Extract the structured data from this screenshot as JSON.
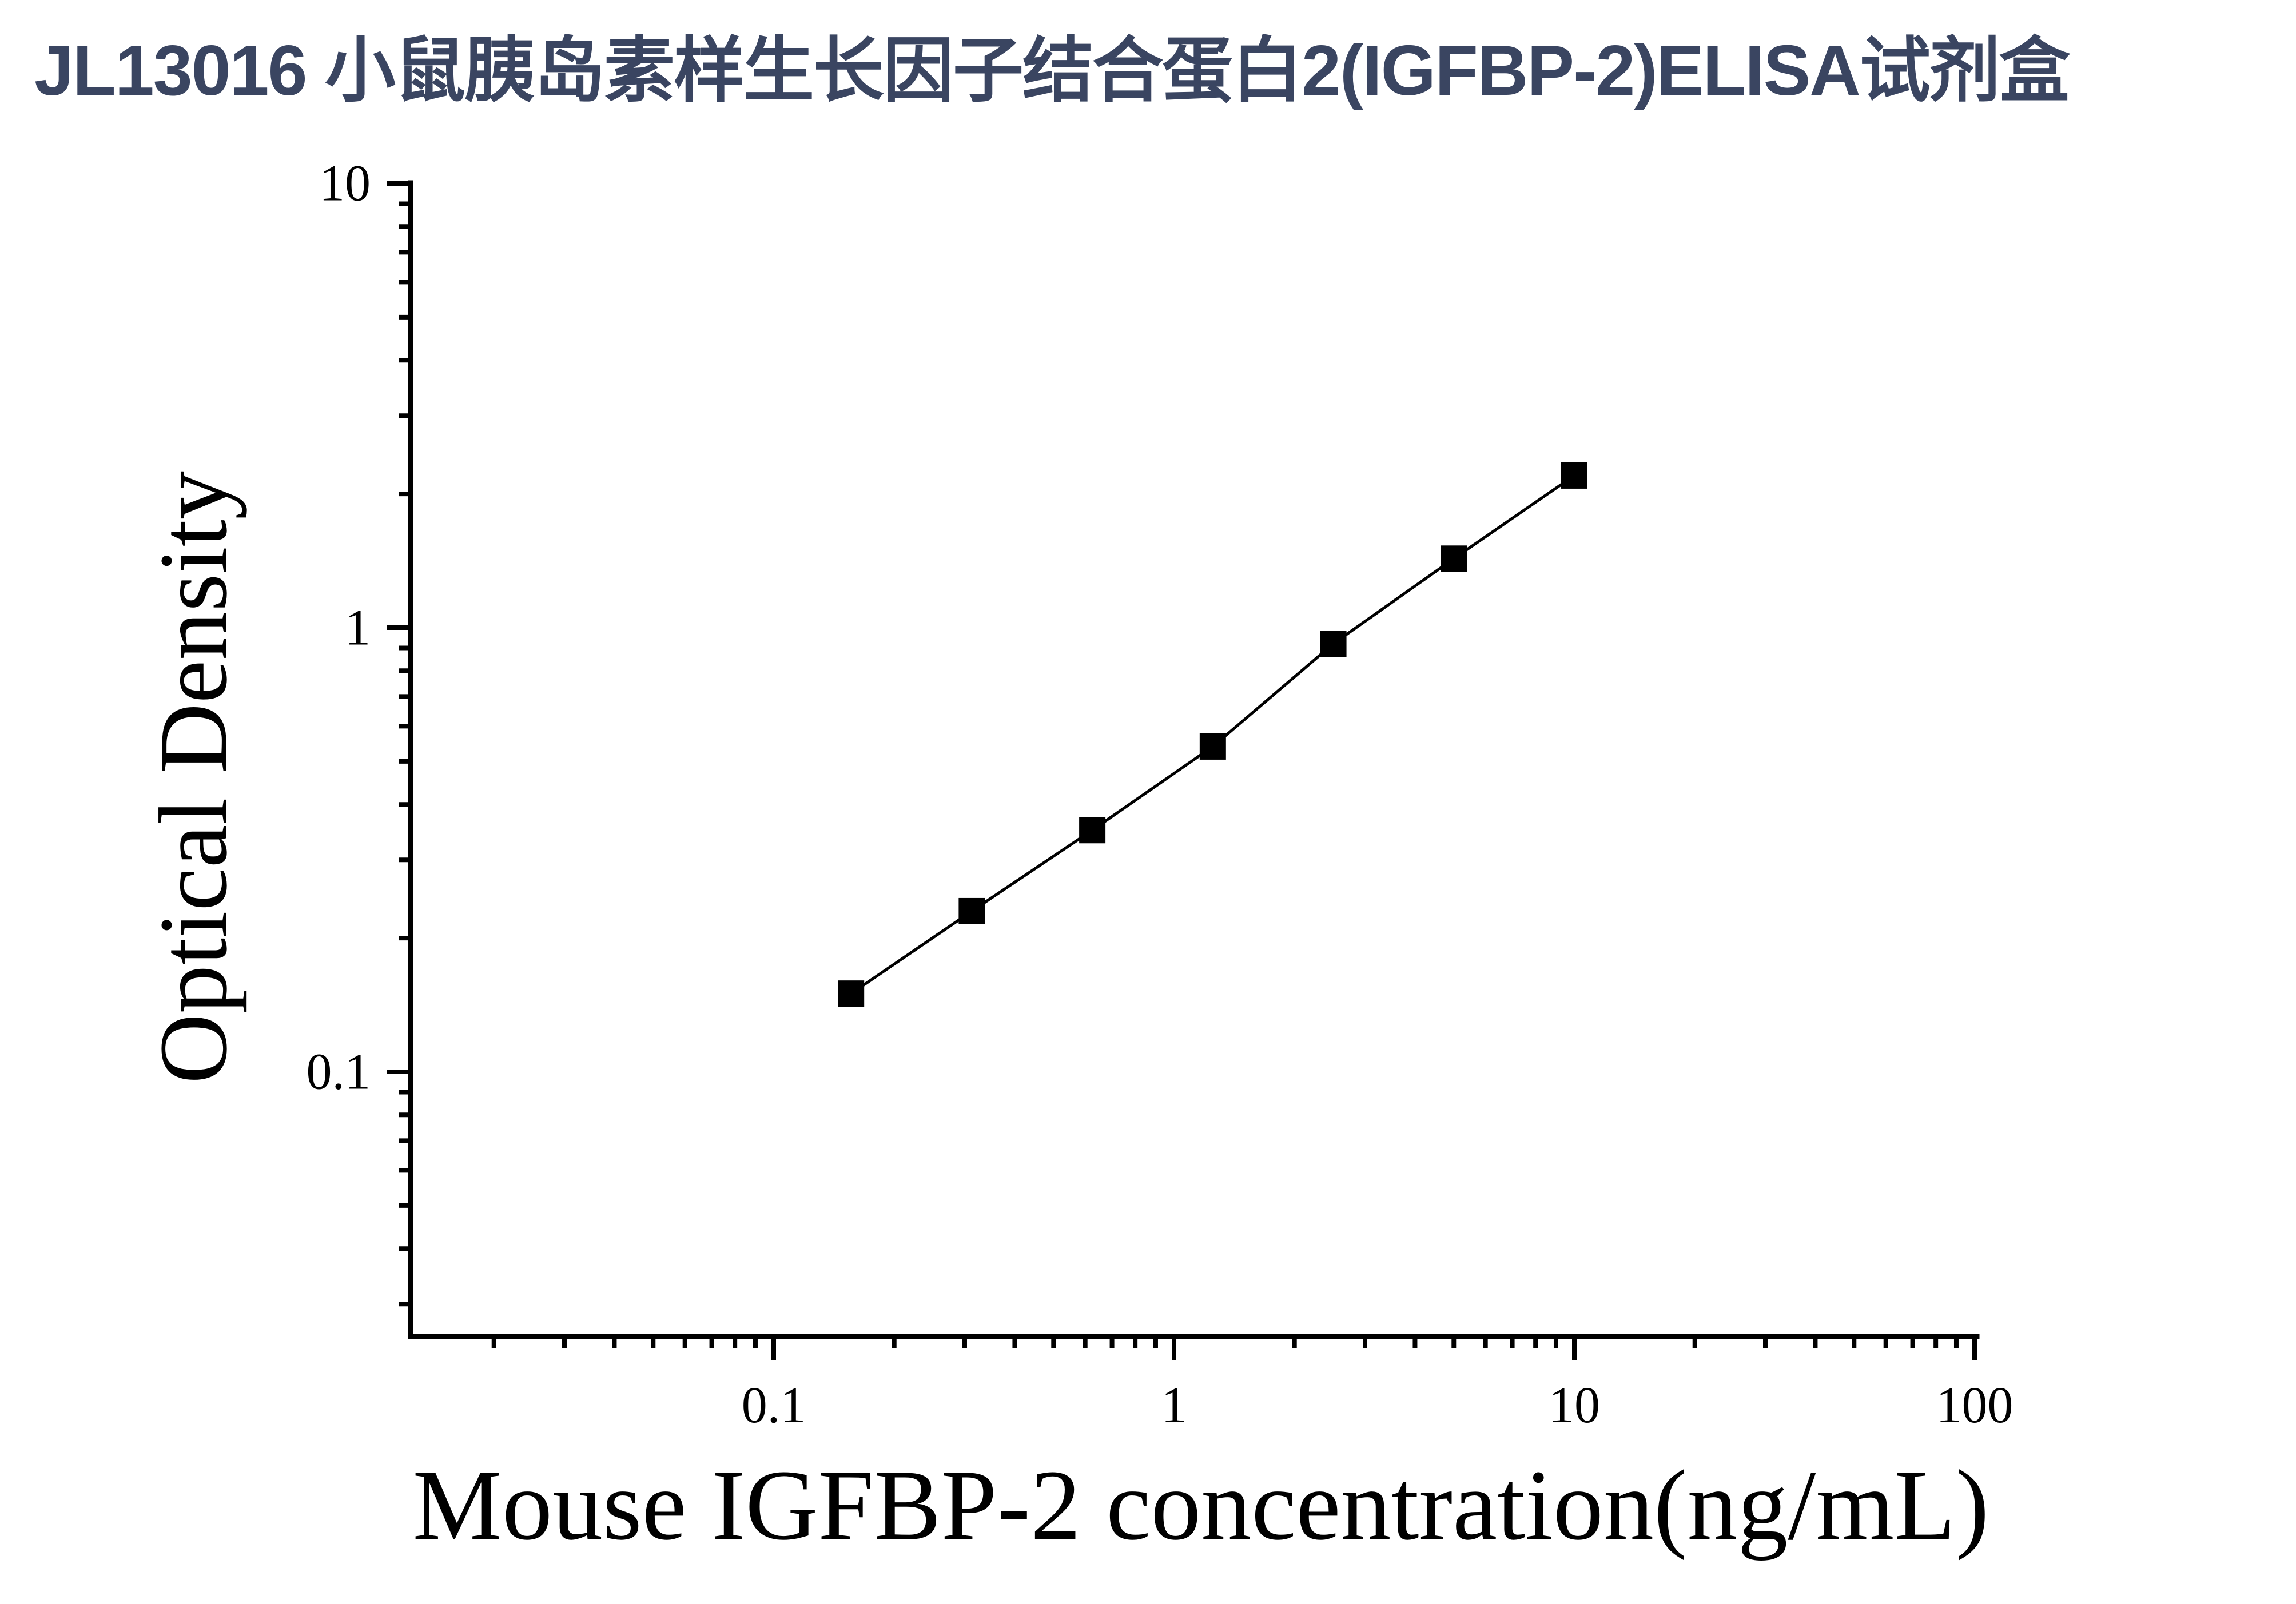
{
  "chart_data": {
    "type": "line",
    "title": "JL13016 小鼠胰岛素样生长因子结合蛋白2(IGFBP-2)ELISA试剂盒",
    "title_color": "#3A4561",
    "xlabel": "Mouse IGFBP-2 concentration(ng/mL)",
    "ylabel": "Optical Density",
    "x_scale": "log",
    "y_scale": "log",
    "xlim": [
      0.0123,
      100
    ],
    "ylim": [
      0.0255,
      10
    ],
    "x_ticks": [
      0.1,
      1,
      10,
      100
    ],
    "x_tick_labels": [
      "0.1",
      "1",
      "10",
      "100"
    ],
    "y_ticks": [
      0.1,
      1,
      10
    ],
    "y_tick_labels": [
      "0.1",
      "1",
      "10"
    ],
    "grid": false,
    "legend": false,
    "marker": "square",
    "marker_color": "#000000",
    "line_color": "#000000",
    "axis_color": "#000000",
    "series": [
      {
        "x": [
          0.156,
          0.3125,
          0.625,
          1.25,
          2.5,
          5,
          10
        ],
        "y": [
          0.15,
          0.23,
          0.35,
          0.54,
          0.92,
          1.43,
          2.2
        ]
      }
    ]
  }
}
